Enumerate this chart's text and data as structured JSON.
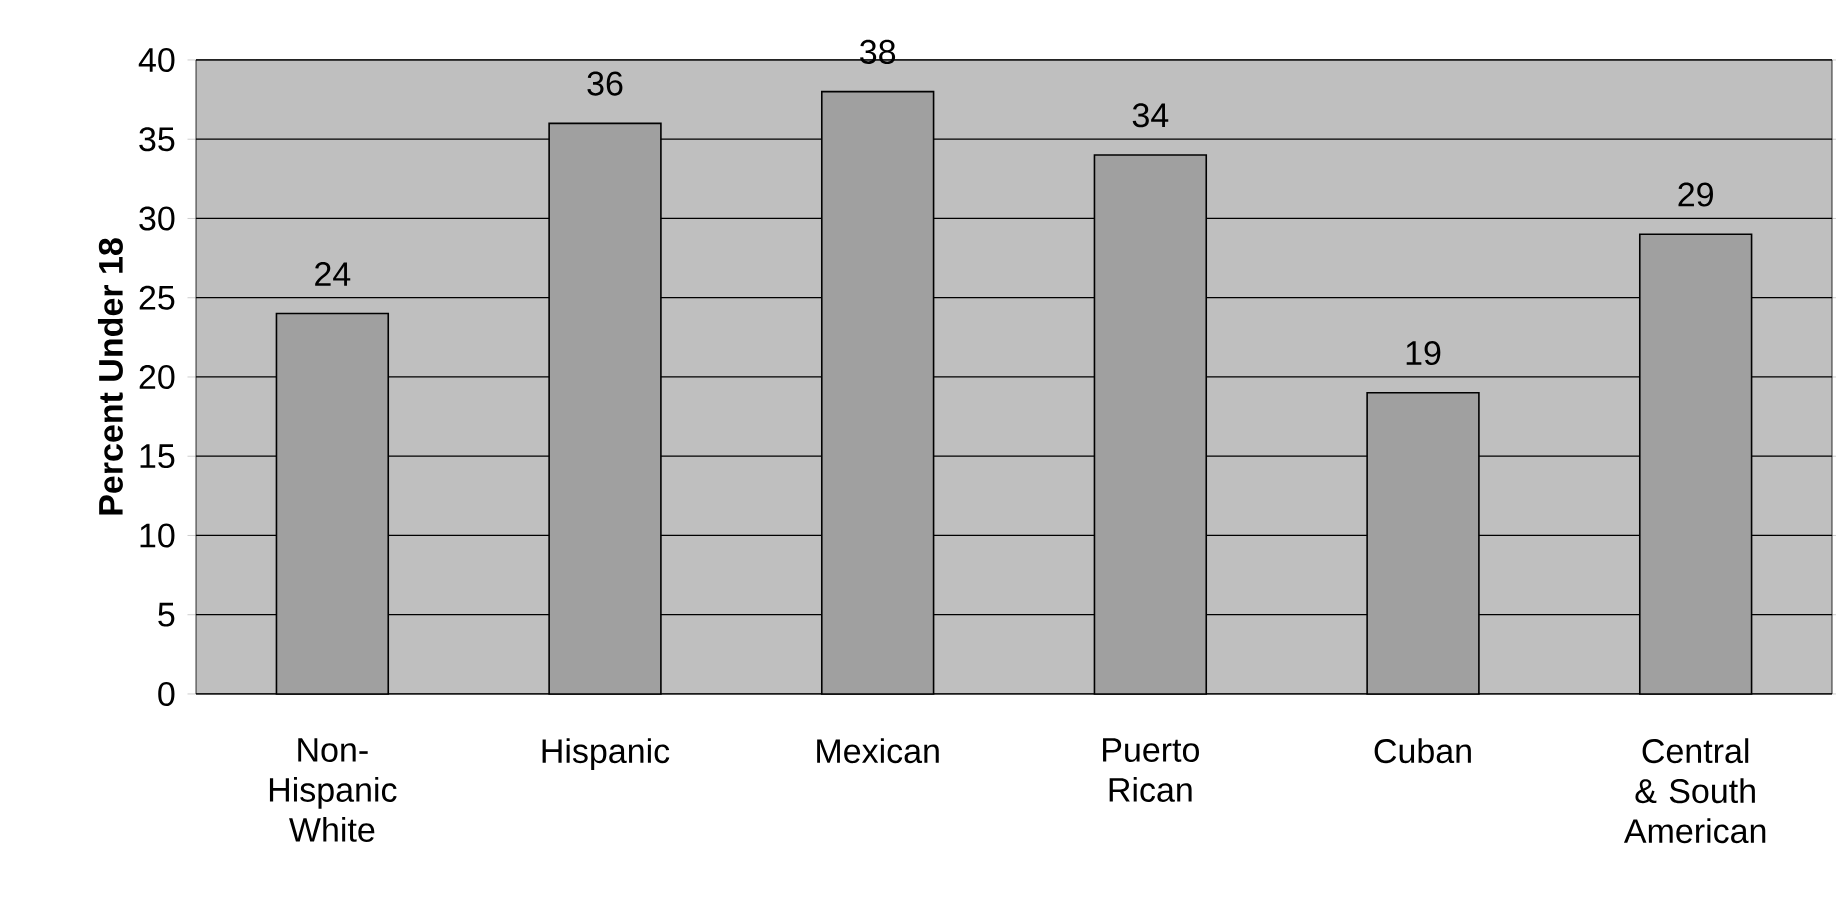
{
  "chart_data": {
    "type": "bar",
    "ylabel": "Percent Under 18",
    "categories": [
      "Non-Hispanic White",
      "Hispanic",
      "Mexican",
      "Puerto Rican",
      "Cuban",
      "Central & South American"
    ],
    "values": [
      24,
      36,
      38,
      34,
      19,
      29
    ],
    "color": "#a0a0a0",
    "ylim": [
      0,
      40
    ],
    "yticks": [
      0,
      5,
      10,
      15,
      20,
      25,
      30,
      35,
      40
    ],
    "grid": "y",
    "data_labels": true
  }
}
